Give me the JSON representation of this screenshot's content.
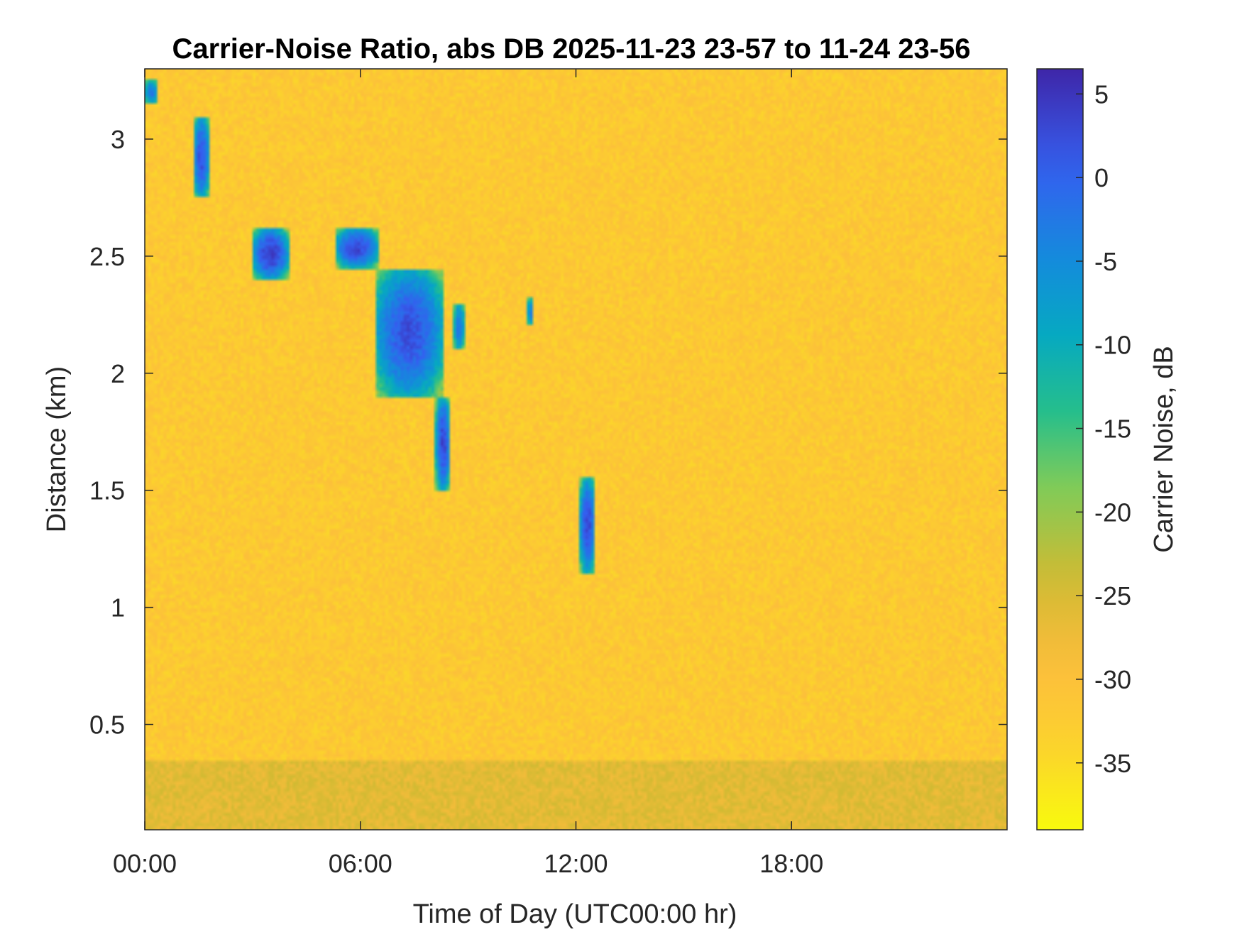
{
  "chart_data": {
    "type": "heatmap",
    "title": "Carrier-Noise Ratio, abs DB 2025-11-23 23-57 to 11-24 23-56",
    "xlabel": "Time of Day (UTC00:00 hr)",
    "ylabel": "Distance (km)",
    "colorbar_label": "Carrier Noise, dB",
    "colormap": "parula (reversed)",
    "x_range_hours": [
      0,
      24
    ],
    "y_range_km": [
      0.05,
      3.3
    ],
    "z_range_db": [
      -39,
      6.5
    ],
    "x_ticks": [
      {
        "value": 0,
        "label": "00:00"
      },
      {
        "value": 6,
        "label": "06:00"
      },
      {
        "value": 12,
        "label": "12:00"
      },
      {
        "value": 18,
        "label": "18:00"
      }
    ],
    "y_ticks": [
      {
        "value": 0.5,
        "label": "0.5"
      },
      {
        "value": 1,
        "label": "1"
      },
      {
        "value": 1.5,
        "label": "1.5"
      },
      {
        "value": 2,
        "label": "2"
      },
      {
        "value": 2.5,
        "label": "2.5"
      },
      {
        "value": 3,
        "label": "3"
      }
    ],
    "colorbar_ticks": [
      {
        "value": 5,
        "label": "5"
      },
      {
        "value": 0,
        "label": "0"
      },
      {
        "value": -5,
        "label": "-5"
      },
      {
        "value": -10,
        "label": "-10"
      },
      {
        "value": -15,
        "label": "-15"
      },
      {
        "value": -20,
        "label": "-20"
      },
      {
        "value": -25,
        "label": "-25"
      },
      {
        "value": -30,
        "label": "-30"
      },
      {
        "value": -35,
        "label": "-35"
      }
    ],
    "background_level_db": -32,
    "near_surface_level_db": -26,
    "features": [
      {
        "name": "early-top-blob",
        "hours": [
          0.0,
          0.35
        ],
        "km": [
          3.15,
          3.25
        ],
        "peak_db": -2
      },
      {
        "name": "early-streak",
        "hours": [
          1.35,
          1.8
        ],
        "km": [
          2.75,
          3.1
        ],
        "peak_db": 2
      },
      {
        "name": "cloud-patch-1",
        "hours": [
          3.0,
          4.0
        ],
        "km": [
          2.4,
          2.62
        ],
        "peak_db": 4
      },
      {
        "name": "cloud-patch-2",
        "hours": [
          5.3,
          6.5
        ],
        "km": [
          2.45,
          2.62
        ],
        "peak_db": 3
      },
      {
        "name": "descending-layer",
        "hours": [
          6.4,
          8.3
        ],
        "km": [
          1.9,
          2.45
        ],
        "peak_db": 2
      },
      {
        "name": "falling-streak",
        "hours": [
          8.1,
          8.5
        ],
        "km": [
          1.5,
          1.9
        ],
        "peak_db": 3
      },
      {
        "name": "small-blob",
        "hours": [
          8.6,
          8.9
        ],
        "km": [
          2.1,
          2.3
        ],
        "peak_db": -2
      },
      {
        "name": "small-blob-2",
        "hours": [
          10.65,
          10.8
        ],
        "km": [
          2.2,
          2.32
        ],
        "peak_db": -3
      },
      {
        "name": "low-streak",
        "hours": [
          12.1,
          12.55
        ],
        "km": [
          1.15,
          1.55
        ],
        "peak_db": 3
      }
    ]
  }
}
